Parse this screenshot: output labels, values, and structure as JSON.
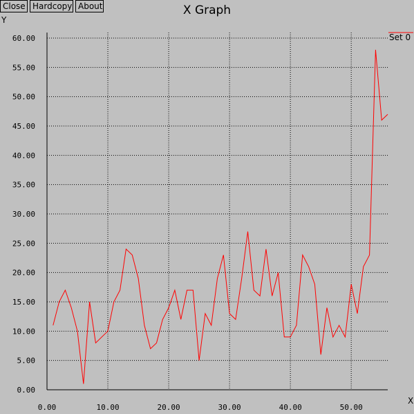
{
  "window": {
    "title": "X Graph",
    "buttons": {
      "close": "Close",
      "hardcopy": "Hardcopy",
      "about": "About"
    }
  },
  "colors": {
    "background": "#c0c0c0",
    "series": "#ff0000",
    "grid": "#000000"
  },
  "chart_data": {
    "type": "line",
    "title": "X Graph",
    "xlabel": "X",
    "ylabel": "Y",
    "xlim": [
      0,
      56
    ],
    "ylim": [
      0,
      60
    ],
    "x_ticks": [
      "0.00",
      "10.00",
      "20.00",
      "30.00",
      "40.00",
      "50.00"
    ],
    "y_ticks": [
      "0.00",
      "5.00",
      "10.00",
      "15.00",
      "20.00",
      "25.00",
      "30.00",
      "35.00",
      "40.00",
      "45.00",
      "50.00",
      "55.00",
      "60.00"
    ],
    "grid": true,
    "legend_position": "top-right",
    "series": [
      {
        "name": "Set 0",
        "color": "#ff0000",
        "x": [
          1,
          2,
          3,
          4,
          5,
          6,
          7,
          8,
          9,
          10,
          11,
          12,
          13,
          14,
          15,
          16,
          17,
          18,
          19,
          20,
          21,
          22,
          23,
          24,
          25,
          26,
          27,
          28,
          29,
          30,
          31,
          32,
          33,
          34,
          35,
          36,
          37,
          38,
          39,
          40,
          41,
          42,
          43,
          44,
          45,
          46,
          47,
          48,
          49,
          50,
          51,
          52,
          53,
          54,
          55,
          56
        ],
        "y": [
          11,
          15,
          17,
          14,
          10,
          1,
          15,
          8,
          9,
          10,
          15,
          17,
          24,
          23,
          19,
          11,
          7,
          8,
          12,
          14,
          17,
          12,
          17,
          17,
          5,
          13,
          11,
          19,
          23,
          13,
          12,
          19,
          27,
          17,
          16,
          24,
          16,
          20,
          9,
          9,
          11,
          23,
          21,
          18,
          6,
          14,
          9,
          11,
          9,
          18,
          13,
          21,
          23,
          58,
          46,
          47
        ]
      }
    ]
  }
}
